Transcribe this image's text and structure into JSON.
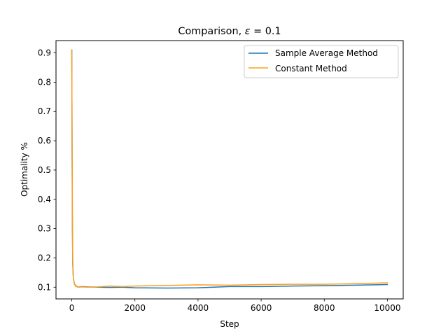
{
  "chart_data": {
    "type": "line",
    "title_prefix": "Comparison, ",
    "title_symbol": "ε",
    "title_suffix": " = 0.1",
    "xlabel": "Step",
    "ylabel": "Optimality %",
    "xlim": [
      -500,
      10500
    ],
    "ylim": [
      0.06,
      0.942
    ],
    "xticks": [
      0,
      2000,
      4000,
      6000,
      8000,
      10000
    ],
    "xtick_labels": [
      "0",
      "2000",
      "4000",
      "6000",
      "8000",
      "10000"
    ],
    "yticks": [
      0.1,
      0.2,
      0.3,
      0.4,
      0.5,
      0.6,
      0.7,
      0.8,
      0.9
    ],
    "ytick_labels": [
      "0.1",
      "0.2",
      "0.3",
      "0.4",
      "0.5",
      "0.6",
      "0.7",
      "0.8",
      "0.9"
    ],
    "grid": false,
    "legend_position": "top-right",
    "series": [
      {
        "name": "Sample Average Method",
        "color": "#1f77b4",
        "x": [
          0,
          10,
          20,
          30,
          50,
          80,
          120,
          200,
          300,
          500,
          800,
          1200,
          1600,
          2000,
          3000,
          4000,
          5000,
          6000,
          7000,
          8000,
          9000,
          10000
        ],
        "y": [
          0.91,
          0.55,
          0.3,
          0.18,
          0.13,
          0.113,
          0.105,
          0.1,
          0.102,
          0.101,
          0.1,
          0.099,
          0.1,
          0.098,
          0.097,
          0.098,
          0.102,
          0.102,
          0.104,
          0.105,
          0.107,
          0.109
        ]
      },
      {
        "name": "Constant Method",
        "color": "#ff9f1c",
        "x": [
          0,
          10,
          20,
          30,
          50,
          80,
          120,
          200,
          300,
          500,
          800,
          1200,
          1600,
          2000,
          3000,
          4000,
          5000,
          6000,
          7000,
          8000,
          9000,
          10000
        ],
        "y": [
          0.91,
          0.6,
          0.33,
          0.19,
          0.13,
          0.112,
          0.103,
          0.1,
          0.101,
          0.1,
          0.101,
          0.104,
          0.102,
          0.104,
          0.106,
          0.108,
          0.107,
          0.109,
          0.11,
          0.11,
          0.112,
          0.115
        ]
      }
    ]
  }
}
